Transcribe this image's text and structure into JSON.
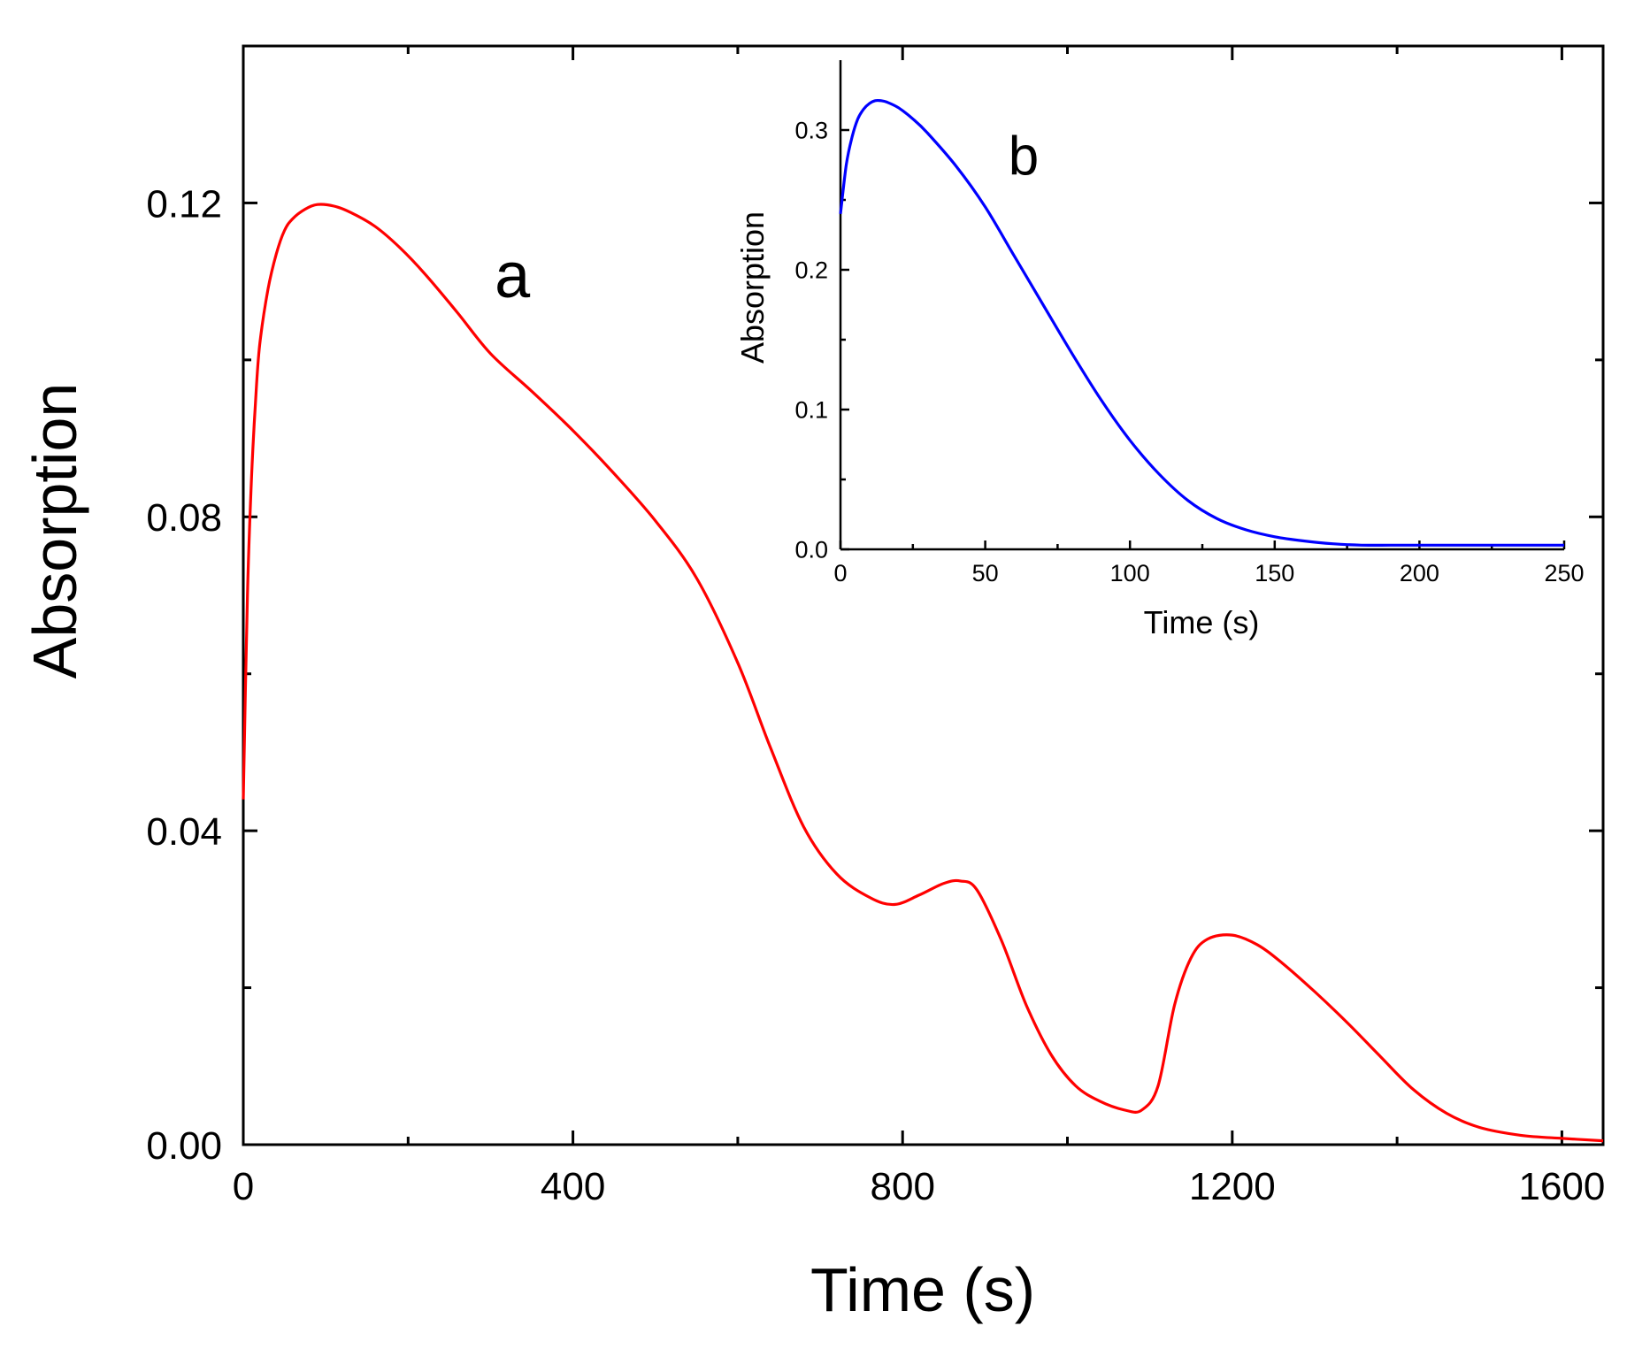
{
  "chart_data": [
    {
      "id": "main",
      "type": "line",
      "title": "",
      "xlabel": "Time (s)",
      "ylabel": "Absorption",
      "xlim": [
        0,
        1650
      ],
      "ylim": [
        0,
        0.14
      ],
      "xticks": [
        0,
        400,
        800,
        1200,
        1600
      ],
      "xtick_labels": [
        "0",
        "400",
        "800",
        "1200",
        "1600"
      ],
      "xminor": [
        200,
        600,
        1000,
        1400
      ],
      "yticks": [
        0,
        0.04,
        0.08,
        0.12
      ],
      "ytick_labels": [
        "0.00",
        "0.04",
        "0.08",
        "0.12"
      ],
      "yminor": [
        0.02,
        0.06,
        0.1
      ],
      "grid": false,
      "annotation": {
        "text": "a",
        "x": 305,
        "y": 0.108
      },
      "series": [
        {
          "name": "a",
          "color": "#ff0000",
          "x": [
            0,
            5,
            10,
            15,
            20,
            30,
            40,
            50,
            60,
            75,
            90,
            110,
            130,
            160,
            190,
            220,
            260,
            300,
            350,
            400,
            450,
            500,
            550,
            600,
            640,
            680,
            720,
            760,
            790,
            820,
            850,
            870,
            890,
            920,
            950,
            980,
            1010,
            1040,
            1070,
            1090,
            1110,
            1130,
            1150,
            1170,
            1200,
            1230,
            1260,
            1300,
            1340,
            1380,
            1420,
            1460,
            1500,
            1550,
            1600,
            1650
          ],
          "y": [
            0.044,
            0.07,
            0.085,
            0.095,
            0.102,
            0.109,
            0.1135,
            0.1165,
            0.118,
            0.1192,
            0.1198,
            0.1196,
            0.1188,
            0.117,
            0.1143,
            0.111,
            0.106,
            0.1008,
            0.096,
            0.091,
            0.0855,
            0.0795,
            0.0722,
            0.0614,
            0.0505,
            0.0405,
            0.0345,
            0.0315,
            0.0306,
            0.0318,
            0.0333,
            0.0336,
            0.0325,
            0.026,
            0.0178,
            0.0115,
            0.0075,
            0.0055,
            0.0044,
            0.0044,
            0.0075,
            0.0178,
            0.0238,
            0.0262,
            0.0267,
            0.0255,
            0.0232,
            0.0195,
            0.0155,
            0.0112,
            0.007,
            0.004,
            0.0022,
            0.0012,
            0.0008,
            0.0005
          ]
        }
      ]
    },
    {
      "id": "inset",
      "type": "line",
      "title": "",
      "xlabel": "Time (s)",
      "ylabel": "Absorption",
      "xlim": [
        0,
        250
      ],
      "ylim": [
        0,
        0.35
      ],
      "xticks": [
        0,
        50,
        100,
        150,
        200,
        250
      ],
      "xtick_labels": [
        "0",
        "50",
        "100",
        "150",
        "200",
        "250"
      ],
      "xminor": [
        25,
        75,
        125,
        175,
        225
      ],
      "yticks": [
        0,
        0.1,
        0.2,
        0.3
      ],
      "ytick_labels": [
        "0.0",
        "0.1",
        "0.2",
        "0.3"
      ],
      "yminor": [
        0.05,
        0.15,
        0.25
      ],
      "grid": false,
      "annotation": {
        "text": "b",
        "x": 58,
        "y": 0.268
      },
      "series": [
        {
          "name": "b",
          "color": "#0000ff",
          "x": [
            0,
            2,
            4,
            6,
            8,
            10,
            12,
            14,
            16,
            20,
            25,
            30,
            40,
            50,
            60,
            70,
            80,
            90,
            100,
            110,
            120,
            130,
            140,
            150,
            160,
            170,
            180,
            190,
            200,
            225,
            250
          ],
          "y": [
            0.24,
            0.275,
            0.295,
            0.308,
            0.315,
            0.319,
            0.321,
            0.321,
            0.32,
            0.316,
            0.308,
            0.298,
            0.274,
            0.245,
            0.21,
            0.175,
            0.14,
            0.107,
            0.078,
            0.054,
            0.035,
            0.022,
            0.014,
            0.009,
            0.006,
            0.004,
            0.003,
            0.003,
            0.003,
            0.003,
            0.003
          ]
        }
      ]
    }
  ]
}
